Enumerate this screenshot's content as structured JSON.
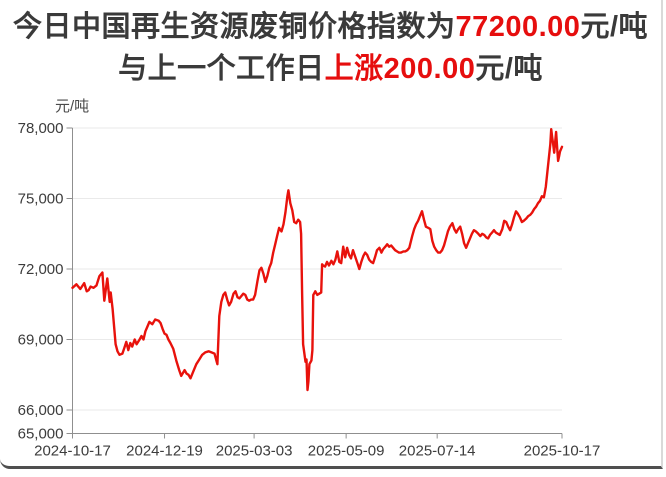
{
  "header": {
    "line1_prefix": "今日中国再生资源废铜价格指数为",
    "line1_value": "77200.00",
    "line1_suffix": "元/吨",
    "line2_prefix": "与上一个工作日",
    "line2_change": "上涨200.00",
    "line2_suffix": "元/吨",
    "accent_color": "#e60e0e",
    "text_color": "#3a3a3a"
  },
  "chart_data": {
    "type": "line",
    "title": "中国再生资源废铜价格指数",
    "unit_label": "元/吨",
    "line_color": "#e8120c",
    "grid_color": "#eaeaea",
    "axis_color": "#8f8f8f",
    "tick_text_color": "#3c3c3c",
    "ylim": [
      65000,
      78000
    ],
    "grid": true,
    "legend_position": "none",
    "y_ticks": [
      {
        "v": 78000,
        "label": "78,000"
      },
      {
        "v": 75000,
        "label": "75,000"
      },
      {
        "v": 72000,
        "label": "72,000"
      },
      {
        "v": 69000,
        "label": "69,000"
      },
      {
        "v": 66000,
        "label": "66,000"
      },
      {
        "v": 65000,
        "label": "65,000"
      }
    ],
    "x_ticks": [
      {
        "t": 0.0,
        "label": "2024-10-17"
      },
      {
        "t": 0.188,
        "label": "2024-12-19"
      },
      {
        "t": 0.371,
        "label": "2025-03-03"
      },
      {
        "t": 0.559,
        "label": "2025-05-09"
      },
      {
        "t": 0.745,
        "label": "2025-07-14"
      },
      {
        "t": 1.0,
        "label": "2025-10-17"
      }
    ],
    "points": [
      [
        0.0,
        71200
      ],
      [
        0.008,
        71350
      ],
      [
        0.016,
        71150
      ],
      [
        0.024,
        71400
      ],
      [
        0.029,
        71050
      ],
      [
        0.033,
        71100
      ],
      [
        0.037,
        71250
      ],
      [
        0.043,
        71200
      ],
      [
        0.049,
        71300
      ],
      [
        0.055,
        71700
      ],
      [
        0.061,
        71850
      ],
      [
        0.065,
        70650
      ],
      [
        0.071,
        71600
      ],
      [
        0.076,
        70600
      ],
      [
        0.078,
        71000
      ],
      [
        0.082,
        70300
      ],
      [
        0.088,
        68800
      ],
      [
        0.092,
        68500
      ],
      [
        0.096,
        68350
      ],
      [
        0.102,
        68400
      ],
      [
        0.106,
        68650
      ],
      [
        0.11,
        68900
      ],
      [
        0.114,
        68550
      ],
      [
        0.118,
        68850
      ],
      [
        0.122,
        68700
      ],
      [
        0.127,
        69000
      ],
      [
        0.131,
        68800
      ],
      [
        0.137,
        69000
      ],
      [
        0.141,
        69150
      ],
      [
        0.145,
        69000
      ],
      [
        0.149,
        69350
      ],
      [
        0.153,
        69550
      ],
      [
        0.157,
        69750
      ],
      [
        0.163,
        69650
      ],
      [
        0.169,
        69850
      ],
      [
        0.176,
        69800
      ],
      [
        0.18,
        69700
      ],
      [
        0.184,
        69450
      ],
      [
        0.188,
        69250
      ],
      [
        0.192,
        69200
      ],
      [
        0.196,
        69000
      ],
      [
        0.2,
        68850
      ],
      [
        0.206,
        68600
      ],
      [
        0.212,
        68100
      ],
      [
        0.218,
        67700
      ],
      [
        0.222,
        67450
      ],
      [
        0.229,
        67700
      ],
      [
        0.233,
        67550
      ],
      [
        0.237,
        67500
      ],
      [
        0.241,
        67350
      ],
      [
        0.247,
        67650
      ],
      [
        0.253,
        67950
      ],
      [
        0.259,
        68150
      ],
      [
        0.265,
        68350
      ],
      [
        0.271,
        68450
      ],
      [
        0.278,
        68500
      ],
      [
        0.284,
        68450
      ],
      [
        0.29,
        68400
      ],
      [
        0.294,
        68100
      ],
      [
        0.296,
        67950
      ],
      [
        0.3,
        70000
      ],
      [
        0.304,
        70600
      ],
      [
        0.308,
        70900
      ],
      [
        0.312,
        71000
      ],
      [
        0.316,
        70700
      ],
      [
        0.32,
        70450
      ],
      [
        0.324,
        70600
      ],
      [
        0.329,
        70950
      ],
      [
        0.333,
        71050
      ],
      [
        0.337,
        70800
      ],
      [
        0.341,
        70750
      ],
      [
        0.345,
        70850
      ],
      [
        0.349,
        70950
      ],
      [
        0.353,
        70900
      ],
      [
        0.357,
        70700
      ],
      [
        0.361,
        70650
      ],
      [
        0.365,
        70700
      ],
      [
        0.369,
        70700
      ],
      [
        0.373,
        70900
      ],
      [
        0.378,
        71500
      ],
      [
        0.382,
        71950
      ],
      [
        0.386,
        72050
      ],
      [
        0.39,
        71800
      ],
      [
        0.394,
        71450
      ],
      [
        0.398,
        71700
      ],
      [
        0.402,
        72050
      ],
      [
        0.406,
        72250
      ],
      [
        0.41,
        72700
      ],
      [
        0.414,
        73050
      ],
      [
        0.418,
        73400
      ],
      [
        0.422,
        73750
      ],
      [
        0.427,
        73600
      ],
      [
        0.431,
        73900
      ],
      [
        0.435,
        74400
      ],
      [
        0.439,
        75100
      ],
      [
        0.441,
        75350
      ],
      [
        0.445,
        74800
      ],
      [
        0.449,
        74500
      ],
      [
        0.453,
        74000
      ],
      [
        0.457,
        73950
      ],
      [
        0.461,
        74100
      ],
      [
        0.465,
        74000
      ],
      [
        0.467,
        73500
      ],
      [
        0.469,
        71000
      ],
      [
        0.471,
        68800
      ],
      [
        0.476,
        68050
      ],
      [
        0.478,
        68150
      ],
      [
        0.48,
        66850
      ],
      [
        0.482,
        67200
      ],
      [
        0.484,
        67950
      ],
      [
        0.488,
        68100
      ],
      [
        0.49,
        68550
      ],
      [
        0.492,
        70900
      ],
      [
        0.496,
        71050
      ],
      [
        0.5,
        70900
      ],
      [
        0.504,
        70950
      ],
      [
        0.508,
        71000
      ],
      [
        0.51,
        72200
      ],
      [
        0.512,
        72150
      ],
      [
        0.516,
        72100
      ],
      [
        0.52,
        72300
      ],
      [
        0.524,
        72150
      ],
      [
        0.529,
        72350
      ],
      [
        0.533,
        72200
      ],
      [
        0.537,
        72400
      ],
      [
        0.541,
        72750
      ],
      [
        0.545,
        72300
      ],
      [
        0.549,
        72250
      ],
      [
        0.553,
        72950
      ],
      [
        0.557,
        72500
      ],
      [
        0.561,
        72900
      ],
      [
        0.565,
        72600
      ],
      [
        0.569,
        72450
      ],
      [
        0.573,
        72800
      ],
      [
        0.578,
        72500
      ],
      [
        0.582,
        72250
      ],
      [
        0.586,
        72000
      ],
      [
        0.59,
        72300
      ],
      [
        0.594,
        72550
      ],
      [
        0.598,
        72700
      ],
      [
        0.602,
        72600
      ],
      [
        0.606,
        72400
      ],
      [
        0.61,
        72300
      ],
      [
        0.614,
        72250
      ],
      [
        0.618,
        72500
      ],
      [
        0.622,
        72800
      ],
      [
        0.627,
        72900
      ],
      [
        0.631,
        72700
      ],
      [
        0.635,
        72850
      ],
      [
        0.639,
        72950
      ],
      [
        0.643,
        73050
      ],
      [
        0.647,
        72950
      ],
      [
        0.651,
        73000
      ],
      [
        0.655,
        72900
      ],
      [
        0.659,
        72800
      ],
      [
        0.663,
        72750
      ],
      [
        0.667,
        72700
      ],
      [
        0.671,
        72700
      ],
      [
        0.676,
        72750
      ],
      [
        0.68,
        72750
      ],
      [
        0.684,
        72800
      ],
      [
        0.688,
        72900
      ],
      [
        0.694,
        73400
      ],
      [
        0.698,
        73700
      ],
      [
        0.702,
        73900
      ],
      [
        0.706,
        74050
      ],
      [
        0.71,
        74250
      ],
      [
        0.714,
        74460
      ],
      [
        0.718,
        74100
      ],
      [
        0.722,
        73800
      ],
      [
        0.727,
        73750
      ],
      [
        0.731,
        73700
      ],
      [
        0.735,
        73200
      ],
      [
        0.739,
        72950
      ],
      [
        0.743,
        72800
      ],
      [
        0.747,
        72700
      ],
      [
        0.751,
        72700
      ],
      [
        0.755,
        72800
      ],
      [
        0.759,
        73000
      ],
      [
        0.763,
        73300
      ],
      [
        0.767,
        73600
      ],
      [
        0.771,
        73800
      ],
      [
        0.776,
        73950
      ],
      [
        0.78,
        73700
      ],
      [
        0.784,
        73550
      ],
      [
        0.788,
        73700
      ],
      [
        0.792,
        73800
      ],
      [
        0.796,
        73500
      ],
      [
        0.8,
        73100
      ],
      [
        0.804,
        72900
      ],
      [
        0.808,
        73100
      ],
      [
        0.812,
        73300
      ],
      [
        0.816,
        73500
      ],
      [
        0.82,
        73650
      ],
      [
        0.824,
        73600
      ],
      [
        0.829,
        73500
      ],
      [
        0.833,
        73400
      ],
      [
        0.837,
        73500
      ],
      [
        0.841,
        73450
      ],
      [
        0.845,
        73350
      ],
      [
        0.849,
        73300
      ],
      [
        0.853,
        73450
      ],
      [
        0.857,
        73550
      ],
      [
        0.861,
        73650
      ],
      [
        0.865,
        73550
      ],
      [
        0.869,
        73500
      ],
      [
        0.873,
        73450
      ],
      [
        0.878,
        73700
      ],
      [
        0.882,
        74050
      ],
      [
        0.886,
        74000
      ],
      [
        0.89,
        73800
      ],
      [
        0.894,
        73650
      ],
      [
        0.898,
        73900
      ],
      [
        0.902,
        74200
      ],
      [
        0.906,
        74450
      ],
      [
        0.91,
        74350
      ],
      [
        0.914,
        74200
      ],
      [
        0.918,
        74000
      ],
      [
        0.922,
        74050
      ],
      [
        0.927,
        74150
      ],
      [
        0.931,
        74250
      ],
      [
        0.935,
        74300
      ],
      [
        0.939,
        74400
      ],
      [
        0.943,
        74550
      ],
      [
        0.947,
        74650
      ],
      [
        0.951,
        74800
      ],
      [
        0.955,
        74900
      ],
      [
        0.959,
        75100
      ],
      [
        0.963,
        75050
      ],
      [
        0.967,
        75500
      ],
      [
        0.971,
        76300
      ],
      [
        0.976,
        77300
      ],
      [
        0.978,
        77950
      ],
      [
        0.98,
        77600
      ],
      [
        0.982,
        77300
      ],
      [
        0.984,
        76950
      ],
      [
        0.988,
        77830
      ],
      [
        0.99,
        77200
      ],
      [
        0.992,
        76600
      ],
      [
        0.994,
        76800
      ],
      [
        0.996,
        77000
      ],
      [
        1.0,
        77200
      ]
    ]
  }
}
